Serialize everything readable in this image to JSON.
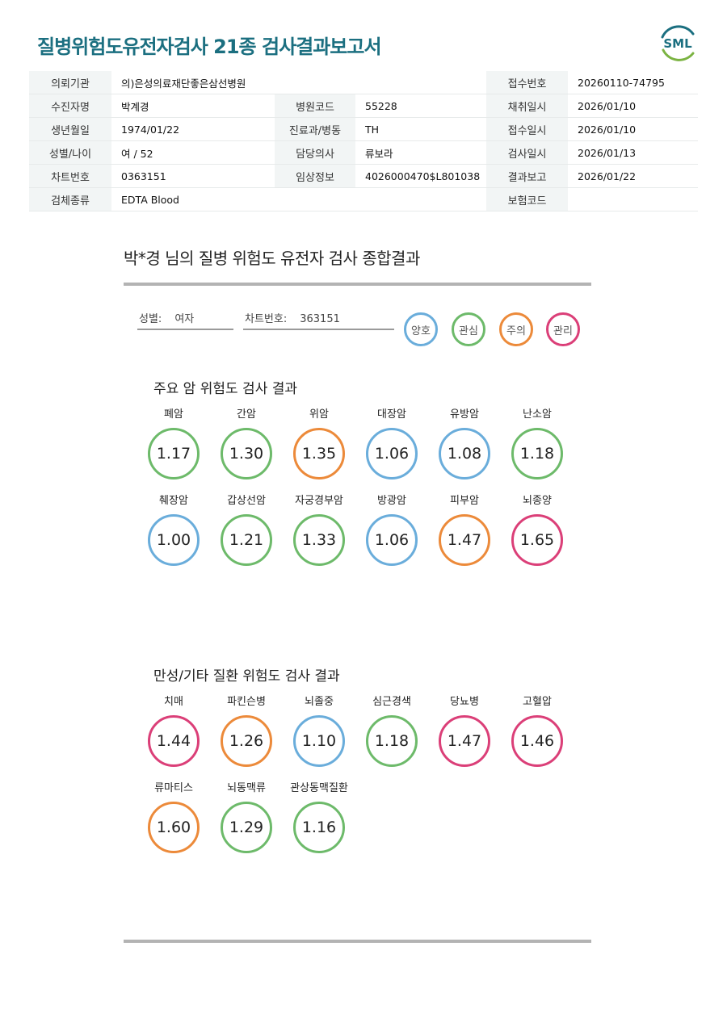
{
  "header": {
    "title": "질병위험도유전자검사 21종 검사결과보고서",
    "logo_text": "SML"
  },
  "info": {
    "rows": [
      [
        {
          "label": "의뢰기관",
          "value": "의)은성의료재단좋은삼선병원"
        },
        {
          "label": "",
          "value": ""
        },
        {
          "label": "접수번호",
          "value": "20260110-74795"
        }
      ],
      [
        {
          "label": "수진자명",
          "value": "박계경"
        },
        {
          "label": "병원코드",
          "value": "55228"
        },
        {
          "label": "채취일시",
          "value": "2026/01/10"
        }
      ],
      [
        {
          "label": "생년월일",
          "value": "1974/01/22"
        },
        {
          "label": "진료과/병동",
          "value": "TH"
        },
        {
          "label": "접수일시",
          "value": "2026/01/10"
        }
      ],
      [
        {
          "label": "성별/나이",
          "value": "여 / 52"
        },
        {
          "label": "담당의사",
          "value": "류보라"
        },
        {
          "label": "검사일시",
          "value": "2026/01/13"
        }
      ],
      [
        {
          "label": "차트번호",
          "value": "0363151"
        },
        {
          "label": "임상정보",
          "value": "4026000470$L801038"
        },
        {
          "label": "결과보고",
          "value": "2026/01/22"
        }
      ],
      [
        {
          "label": "검체종류",
          "value": "EDTA Blood"
        },
        {
          "label": "",
          "value": ""
        },
        {
          "label": "보험코드",
          "value": ""
        }
      ]
    ]
  },
  "summary": {
    "title": "박*경 님의 질병 위험도 유전자 검사 종합결과",
    "sex_label": "성별:",
    "sex_value": "여자",
    "chart_label": "차트번호:",
    "chart_value": "363151"
  },
  "legend": [
    {
      "label": "양호",
      "color": "#6aaddb"
    },
    {
      "label": "관심",
      "color": "#6dba6a"
    },
    {
      "label": "주의",
      "color": "#ec8a3a"
    },
    {
      "label": "관리",
      "color": "#db3f78"
    }
  ],
  "cancer": {
    "title": "주요 암 위험도 검사 결과",
    "items": [
      {
        "name": "폐암",
        "value": "1.17",
        "level": "관심"
      },
      {
        "name": "간암",
        "value": "1.30",
        "level": "관심"
      },
      {
        "name": "위암",
        "value": "1.35",
        "level": "주의"
      },
      {
        "name": "대장암",
        "value": "1.06",
        "level": "양호"
      },
      {
        "name": "유방암",
        "value": "1.08",
        "level": "양호"
      },
      {
        "name": "난소암",
        "value": "1.18",
        "level": "관심"
      },
      {
        "name": "췌장암",
        "value": "1.00",
        "level": "양호"
      },
      {
        "name": "갑상선암",
        "value": "1.21",
        "level": "관심"
      },
      {
        "name": "자궁경부암",
        "value": "1.33",
        "level": "관심"
      },
      {
        "name": "방광암",
        "value": "1.06",
        "level": "양호"
      },
      {
        "name": "피부암",
        "value": "1.47",
        "level": "주의"
      },
      {
        "name": "뇌종양",
        "value": "1.65",
        "level": "관리"
      }
    ]
  },
  "chronic": {
    "title": "만성/기타 질환 위험도 검사 결과",
    "items": [
      {
        "name": "치매",
        "value": "1.44",
        "level": "관리"
      },
      {
        "name": "파킨슨병",
        "value": "1.26",
        "level": "주의"
      },
      {
        "name": "뇌졸중",
        "value": "1.10",
        "level": "양호"
      },
      {
        "name": "심근경색",
        "value": "1.18",
        "level": "관심"
      },
      {
        "name": "당뇨병",
        "value": "1.47",
        "level": "관리"
      },
      {
        "name": "고혈압",
        "value": "1.46",
        "level": "관리"
      },
      {
        "name": "류마티스",
        "value": "1.60",
        "level": "주의"
      },
      {
        "name": "뇌동맥류",
        "value": "1.29",
        "level": "관심"
      },
      {
        "name": "관상동맥질환",
        "value": "1.16",
        "level": "관심"
      }
    ]
  }
}
